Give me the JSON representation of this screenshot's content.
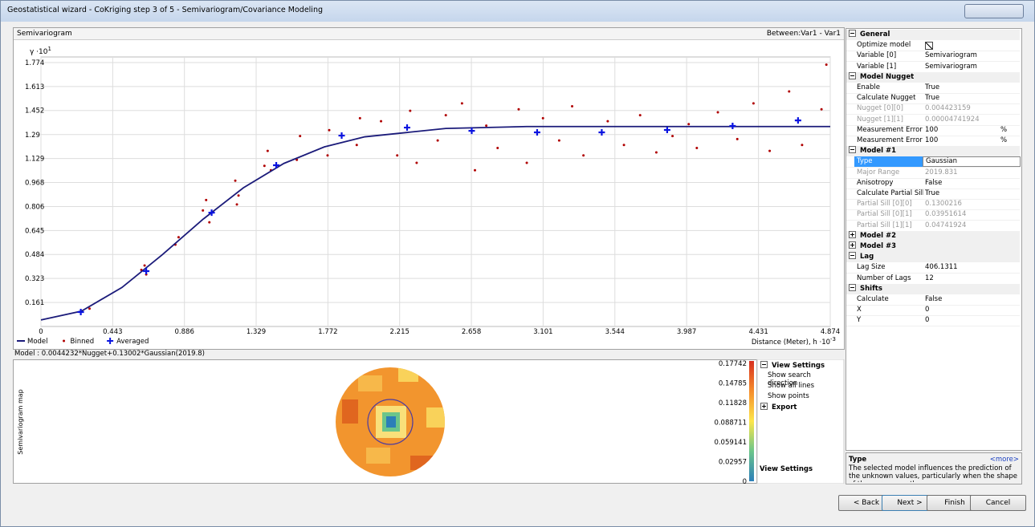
{
  "window": {
    "title": "Geostatistical wizard - CoKriging step 3 of 5 - Semivariogram/Covariance Modeling"
  },
  "panel": {
    "title": "Semivariogram",
    "selector": "Between:Var1 - Var1"
  },
  "chart_data": {
    "type": "scatter",
    "y_axis_label": "γ ·10",
    "y_axis_exponent": "1",
    "x_axis_label": "Distance (Meter), h ·10",
    "x_axis_exponent": "-3",
    "xlim": [
      0,
      4.874
    ],
    "ylim": [
      0,
      1.774
    ],
    "xticks": [
      0,
      0.443,
      0.886,
      1.329,
      1.772,
      2.215,
      2.658,
      3.101,
      3.544,
      3.987,
      4.431,
      4.874
    ],
    "yticks": [
      0.161,
      0.323,
      0.484,
      0.645,
      0.806,
      0.968,
      1.129,
      1.29,
      1.452,
      1.613,
      1.774
    ],
    "grid": true,
    "series": [
      {
        "name": "Model",
        "color": "#1b1b7a",
        "mark": "line",
        "x": [
          0,
          0.25,
          0.5,
          0.75,
          1.0,
          1.25,
          1.5,
          1.75,
          2.0,
          2.5,
          3.0,
          4.874
        ],
        "values": [
          0.044,
          0.103,
          0.262,
          0.483,
          0.72,
          0.932,
          1.096,
          1.207,
          1.275,
          1.331,
          1.344,
          1.344
        ]
      },
      {
        "name": "Binned",
        "color": "#b00000",
        "mark": "dot",
        "x": [
          0.3,
          0.62,
          0.64,
          0.65,
          0.83,
          0.85,
          1.0,
          1.02,
          1.04,
          1.2,
          1.22,
          1.21,
          1.38,
          1.4,
          1.42,
          1.58,
          1.6,
          1.77,
          1.78,
          1.95,
          1.97,
          2.1,
          2.2,
          2.28,
          2.32,
          2.45,
          2.5,
          2.6,
          2.68,
          2.75,
          2.82,
          2.95,
          3.0,
          3.1,
          3.2,
          3.28,
          3.35,
          3.5,
          3.6,
          3.7,
          3.8,
          3.9,
          4.0,
          4.05,
          4.18,
          4.3,
          4.4,
          4.5,
          4.62,
          4.7,
          4.82,
          4.85
        ],
        "values": [
          0.12,
          0.38,
          0.41,
          0.35,
          0.55,
          0.6,
          0.78,
          0.85,
          0.7,
          0.98,
          0.88,
          0.82,
          1.08,
          1.18,
          1.05,
          1.12,
          1.28,
          1.15,
          1.32,
          1.22,
          1.4,
          1.38,
          1.15,
          1.45,
          1.1,
          1.25,
          1.42,
          1.5,
          1.05,
          1.35,
          1.2,
          1.46,
          1.1,
          1.4,
          1.25,
          1.48,
          1.15,
          1.38,
          1.22,
          1.42,
          1.17,
          1.28,
          1.36,
          1.2,
          1.44,
          1.26,
          1.5,
          1.18,
          1.58,
          1.22,
          1.46,
          1.76
        ]
      },
      {
        "name": "Averaged",
        "color": "#0a14e0",
        "mark": "cross",
        "x": [
          0.246,
          0.65,
          1.054,
          1.453,
          1.857,
          2.261,
          2.66,
          3.064,
          3.463,
          3.867,
          4.271,
          4.675
        ],
        "values": [
          0.097,
          0.372,
          0.765,
          1.084,
          1.283,
          1.337,
          1.315,
          1.305,
          1.305,
          1.321,
          1.348,
          1.385
        ]
      }
    ]
  },
  "model_formula": "Model : 0.0044232*Nugget+0.13002*Gaussian(2019.8)",
  "map": {
    "title": "Semivariogram map",
    "scale": [
      "0.17742",
      "0.14785",
      "0.11828",
      "0.088711",
      "0.059141",
      "0.02957",
      "0"
    ]
  },
  "view_settings": {
    "sections": [
      {
        "title": "View Settings",
        "rows": [
          "Show search direction",
          "Show all lines",
          "Show points"
        ]
      },
      {
        "title": "Export"
      }
    ],
    "footer": "View Settings"
  },
  "property_grid": {
    "sections": [
      {
        "title": "General",
        "rows": [
          {
            "name": "Optimize model",
            "checked": true
          },
          {
            "name": "Variable [0]",
            "value": "Semivariogram"
          },
          {
            "name": "Variable [1]",
            "value": "Semivariogram"
          }
        ]
      },
      {
        "title": "Model Nugget",
        "rows": [
          {
            "name": "Enable",
            "value": "True"
          },
          {
            "name": "Calculate Nugget",
            "value": "True"
          },
          {
            "name": "Nugget [0][0]",
            "value": "0.004423159",
            "disabled": true
          },
          {
            "name": "Nugget [1][1]",
            "value": "0.00004741924",
            "disabled": true
          },
          {
            "name": "Measurement Error [0]",
            "value": "100",
            "unit": "%"
          },
          {
            "name": "Measurement Error [1]",
            "value": "100",
            "unit": "%"
          }
        ]
      },
      {
        "title": "Model #1",
        "rows": [
          {
            "name": "Type",
            "value": "Gaussian",
            "selected": true
          },
          {
            "name": "Major Range",
            "value": "2019.831",
            "disabled": true
          },
          {
            "name": "Anisotropy",
            "value": "False"
          },
          {
            "name": "Calculate Partial Sill",
            "value": "True"
          },
          {
            "name": "Partial Sill [0][0]",
            "value": "0.1300216",
            "disabled": true
          },
          {
            "name": "Partial Sill [0][1]",
            "value": "0.03951614",
            "disabled": true
          },
          {
            "name": "Partial Sill [1][1]",
            "value": "0.04741924",
            "disabled": true
          }
        ]
      },
      {
        "title": "Model #2",
        "collapsed": true
      },
      {
        "title": "Model #3",
        "collapsed": true
      },
      {
        "title": "Lag",
        "rows": [
          {
            "name": "Lag Size",
            "value": "406.1311"
          },
          {
            "name": "Number of Lags",
            "value": "12"
          }
        ]
      },
      {
        "title": "Shifts",
        "rows": [
          {
            "name": "Calculate",
            "value": "False"
          },
          {
            "name": "X",
            "value": "0"
          },
          {
            "name": "Y",
            "value": "0"
          }
        ]
      }
    ]
  },
  "help": {
    "title": "Type",
    "more": "<more>",
    "text": "The selected model influences the prediction of the unknown values, particularly when the shape of the curve near the o..."
  },
  "buttons": [
    "< Back",
    "Next >",
    "Finish",
    "Cancel"
  ]
}
